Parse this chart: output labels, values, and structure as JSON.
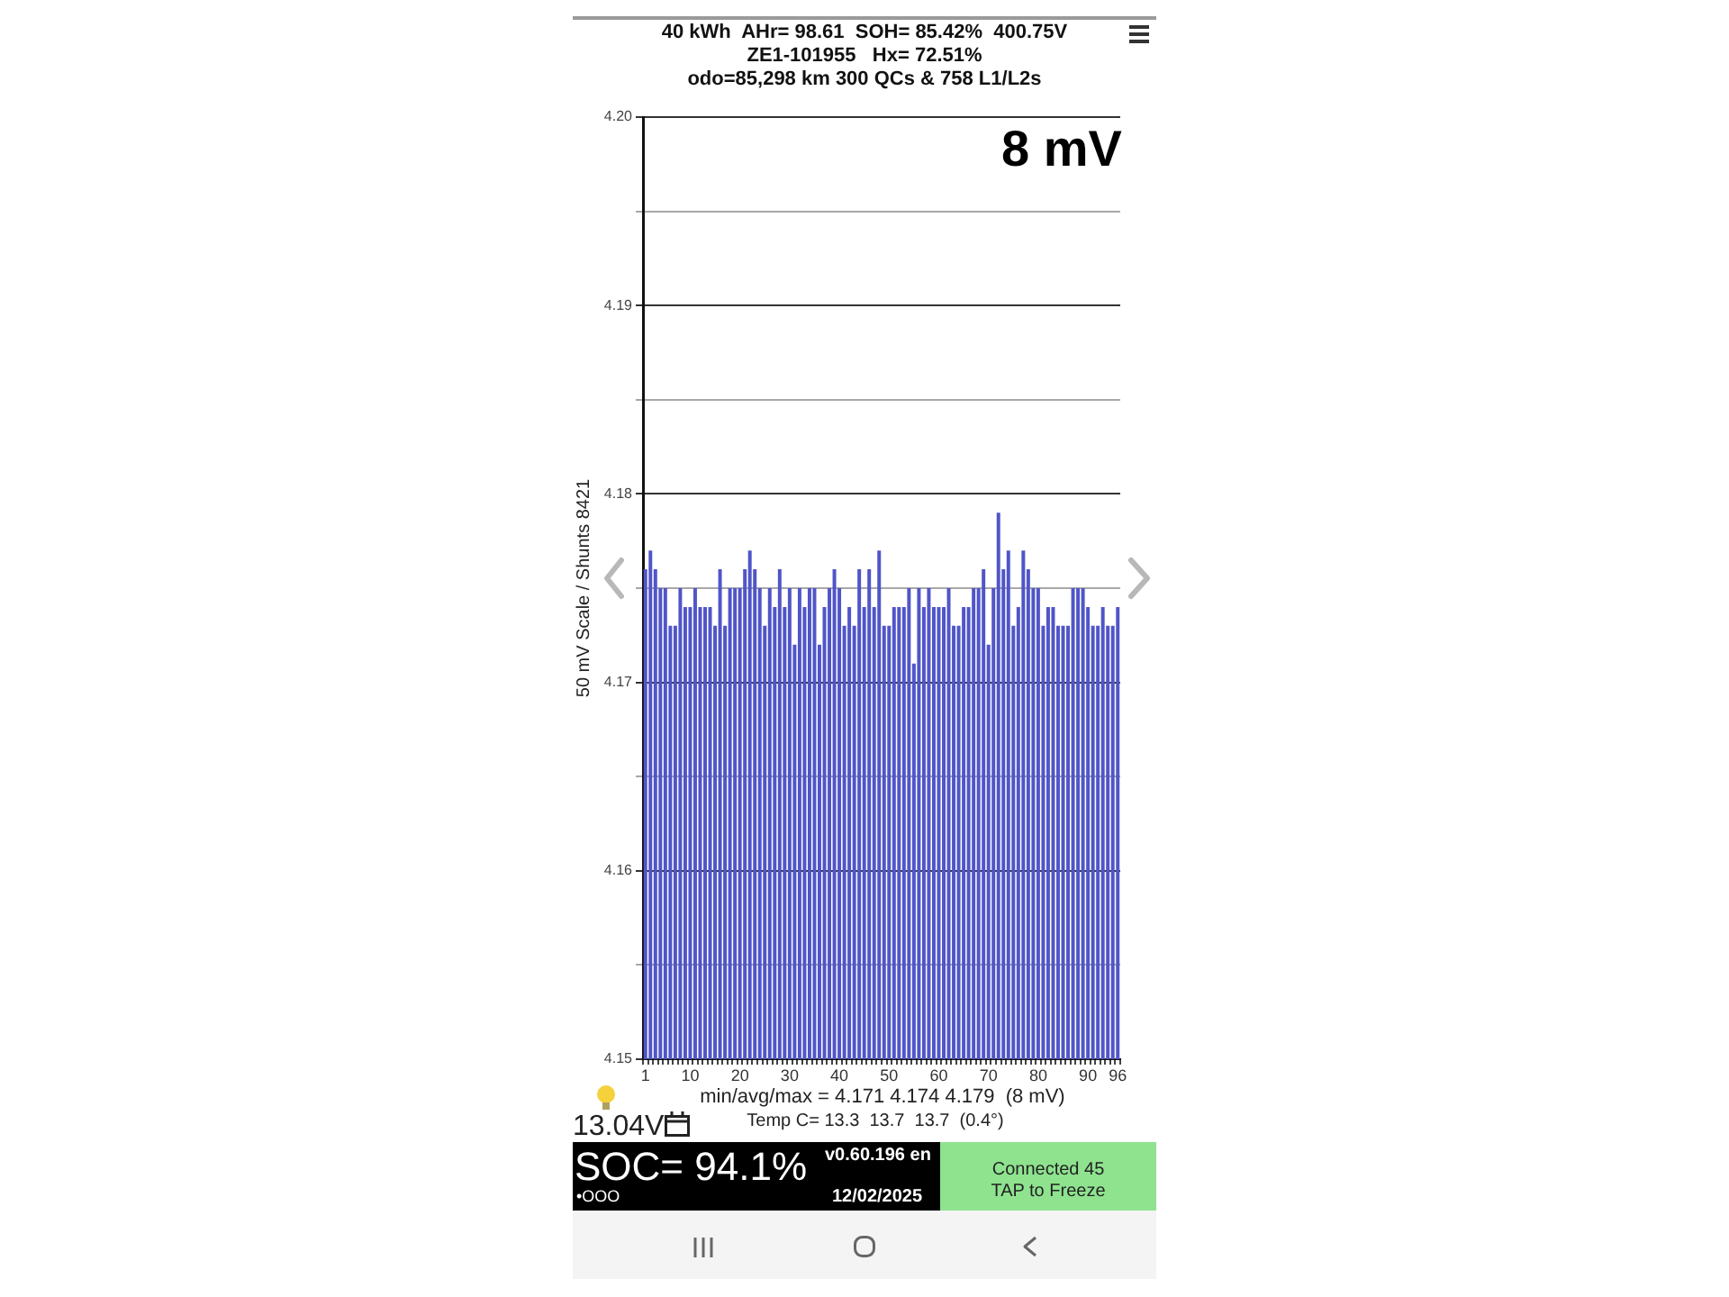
{
  "chart_data": {
    "type": "bar",
    "title": "40 kWh  AHr= 98.61  SOH= 85.42%  400.75V",
    "subtitle": "ZE1-101955   Hx= 72.51%",
    "ylabel": "50 mV Scale / Shunts 8421",
    "annotations": [
      "odo=85,298 km 300 QCs & 758 L1/L2s",
      "8 mV",
      "min/avg/max = 4.171 4.174 4.179  (8 mV)",
      "Temp C= 13.3  13.7  13.7  (0.4°)",
      "13.04V",
      "SOC= 94.1%",
      "v0.60.196 en",
      "12/02/2025",
      "•OOO",
      "Connected 45",
      "TAP to Freeze"
    ],
    "categories": [
      "1",
      null,
      null,
      null,
      null,
      null,
      null,
      null,
      null,
      "10",
      null,
      null,
      null,
      null,
      null,
      null,
      null,
      null,
      null,
      "20",
      null,
      null,
      null,
      null,
      null,
      null,
      null,
      null,
      null,
      "30",
      null,
      null,
      null,
      null,
      null,
      null,
      null,
      null,
      null,
      "40",
      null,
      null,
      null,
      null,
      null,
      null,
      null,
      null,
      null,
      "50",
      null,
      null,
      null,
      null,
      null,
      null,
      null,
      null,
      null,
      "60",
      null,
      null,
      null,
      null,
      null,
      null,
      null,
      null,
      null,
      "70",
      null,
      null,
      null,
      null,
      null,
      null,
      null,
      null,
      null,
      "80",
      null,
      null,
      null,
      null,
      null,
      null,
      null,
      null,
      null,
      "90",
      null,
      null,
      null,
      null,
      null,
      "96"
    ],
    "values": [
      4.176,
      4.177,
      4.176,
      4.175,
      4.175,
      4.173,
      4.173,
      4.175,
      4.174,
      4.174,
      4.175,
      4.174,
      4.174,
      4.174,
      4.173,
      4.176,
      4.173,
      4.175,
      4.175,
      4.175,
      4.176,
      4.177,
      4.176,
      4.175,
      4.173,
      4.175,
      4.174,
      4.176,
      4.174,
      4.175,
      4.172,
      4.175,
      4.174,
      4.175,
      4.175,
      4.172,
      4.174,
      4.175,
      4.176,
      4.175,
      4.173,
      4.174,
      4.173,
      4.176,
      4.174,
      4.176,
      4.174,
      4.177,
      4.173,
      4.173,
      4.174,
      4.174,
      4.174,
      4.175,
      4.171,
      4.175,
      4.174,
      4.175,
      4.174,
      4.174,
      4.174,
      4.175,
      4.173,
      4.173,
      4.174,
      4.174,
      4.175,
      4.175,
      4.176,
      4.172,
      4.175,
      4.179,
      4.176,
      4.177,
      4.173,
      4.174,
      4.177,
      4.176,
      4.175,
      4.175,
      4.173,
      4.174,
      4.174,
      4.173,
      4.173,
      4.173,
      4.175,
      4.175,
      4.175,
      4.174,
      4.173,
      4.173,
      4.174,
      4.173,
      4.173,
      4.174
    ],
    "color": "#5055c8",
    "ylim": [
      4.15,
      4.2
    ],
    "yticks": [
      4.15,
      {
        "value": 4.155,
        "label": null
      },
      4.16,
      {
        "value": 4.165,
        "label": null
      },
      4.17,
      {
        "value": 4.175,
        "label": null
      },
      4.18,
      {
        "value": 4.185,
        "label": null
      },
      4.19,
      {
        "value": 4.195,
        "label": null
      },
      {
        "value": 4.2,
        "label": "4.20"
      }
    ],
    "grid": "y"
  }
}
